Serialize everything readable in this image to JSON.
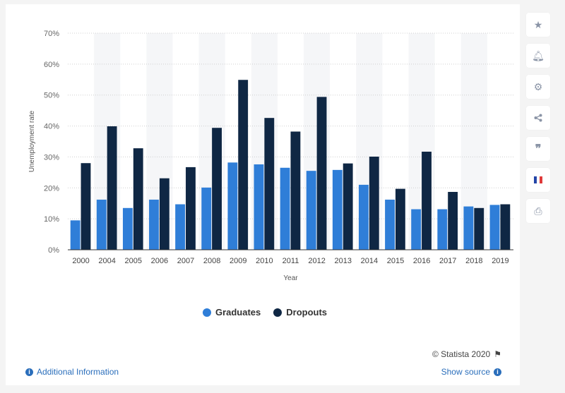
{
  "chart_data": {
    "type": "bar",
    "categories": [
      "2000",
      "2004",
      "2005",
      "2006",
      "2007",
      "2008",
      "2009",
      "2010",
      "2011",
      "2012",
      "2013",
      "2014",
      "2015",
      "2016",
      "2017",
      "2018",
      "2019"
    ],
    "series": [
      {
        "name": "Graduates",
        "color": "#2f7ed8",
        "values": [
          9.5,
          16.2,
          13.5,
          16.2,
          14.7,
          20.1,
          28.2,
          27.6,
          26.5,
          25.5,
          25.8,
          21.0,
          16.2,
          13.1,
          13.1,
          14.0,
          14.5
        ]
      },
      {
        "name": "Dropouts",
        "color": "#0f2744",
        "values": [
          28.0,
          39.9,
          32.8,
          23.1,
          26.7,
          39.4,
          54.9,
          42.6,
          38.2,
          49.4,
          27.9,
          30.1,
          19.7,
          31.7,
          18.7,
          13.5,
          14.7
        ]
      }
    ],
    "xlabel": "Year",
    "ylabel": "Unemployment rate",
    "ylim": [
      0,
      70
    ],
    "yticks": [
      "0%",
      "10%",
      "20%",
      "30%",
      "40%",
      "50%",
      "60%",
      "70%"
    ],
    "grid": true,
    "legend_position": "bottom"
  },
  "legend": {
    "graduates": "Graduates",
    "dropouts": "Dropouts"
  },
  "footer": {
    "credit": "© Statista 2020",
    "additional_info": "Additional Information",
    "show_source": "Show source"
  },
  "toolbar": {
    "icons": [
      "star-icon",
      "bell-icon",
      "gear-icon",
      "share-icon",
      "quote-icon",
      "flag-icon",
      "print-icon"
    ]
  }
}
